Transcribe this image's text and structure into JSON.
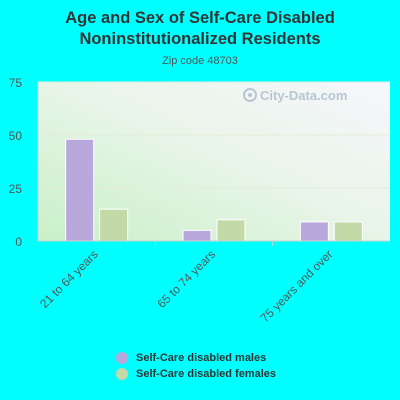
{
  "title": "Age and Sex of Self-Care Disabled Noninstitutionalized Residents",
  "subtitle": "Zip code 48703",
  "watermark": "City-Data.com",
  "colors": {
    "background": "#00ffff",
    "males": "#b9a8dc",
    "females": "#c4d9a8"
  },
  "chart_data": {
    "type": "bar",
    "categories": [
      "21 to 64 years",
      "65 to 74 years",
      "75 years and over"
    ],
    "series": [
      {
        "name": "Self-Care disabled males",
        "values": [
          48,
          5,
          9
        ]
      },
      {
        "name": "Self-Care disabled females",
        "values": [
          15,
          10,
          9
        ]
      }
    ],
    "ylim": [
      0,
      75
    ],
    "yticks": [
      "0",
      "25",
      "50",
      "75"
    ],
    "xlabel": "",
    "ylabel": "",
    "grid": true,
    "legend_position": "bottom"
  }
}
